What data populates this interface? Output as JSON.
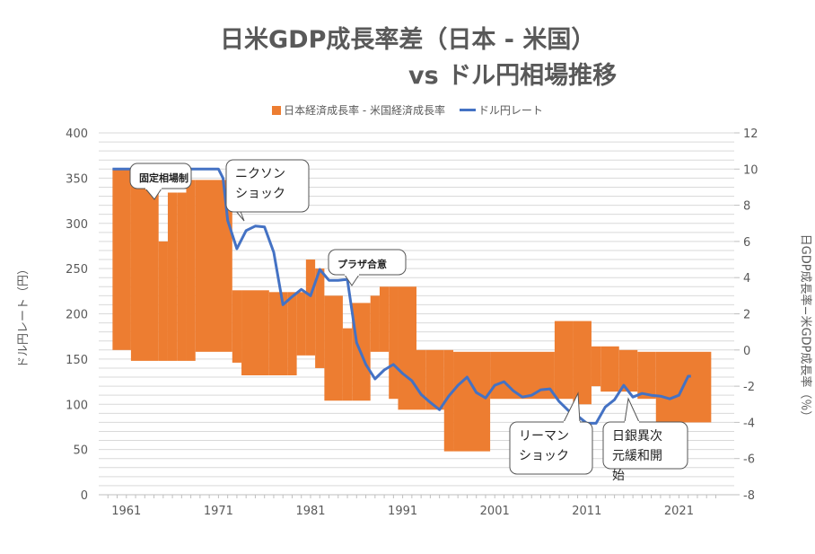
{
  "chart_data": {
    "type": "bar+line",
    "title_line1": "日米GDP成長率差（日本 - 米国）",
    "title_line2": "vs ドル円相場推移",
    "legend": {
      "bar": "日本経済成長率 - 米国経済成長率",
      "line": "ドル円レート"
    },
    "y_left": {
      "label": "ドル円レート（円）",
      "min": 0,
      "max": 400,
      "ticks": [
        0,
        50,
        100,
        150,
        200,
        250,
        300,
        350,
        400
      ]
    },
    "y_right": {
      "label": "日GDP成長率−米GDP成長率（％）",
      "min": -8,
      "max": 12,
      "ticks": [
        -8,
        -6,
        -4,
        -2,
        0,
        2,
        4,
        6,
        8,
        10,
        12
      ]
    },
    "x_ticks": [
      "1961",
      "1971",
      "1981",
      "1991",
      "2001",
      "2011",
      "2021"
    ],
    "x_range": [
      1958,
      2027
    ],
    "bar_series": {
      "name": "日本経済成長率 - 米国経済成長率",
      "color": "#ed7d31",
      "steps": [
        {
          "from": 1959.5,
          "to": 1964.5,
          "value": 10.0
        },
        {
          "from": 1964.5,
          "to": 1965.5,
          "value": 6.0
        },
        {
          "from": 1965.5,
          "to": 1967.5,
          "value": 8.7
        },
        {
          "from": 1967.5,
          "to": 1969.5,
          "value": 9.4
        },
        {
          "from": 1969.5,
          "to": 1972.5,
          "value": 9.4
        },
        {
          "from": 1972.5,
          "to": 1973.5,
          "value": 3.3
        },
        {
          "from": 1973.5,
          "to": 1976.5,
          "value": 3.3
        },
        {
          "from": 1976.5,
          "to": 1979.5,
          "value": 3.2
        },
        {
          "from": 1979.5,
          "to": 1980.5,
          "value": 3.2
        },
        {
          "from": 1980.5,
          "to": 1981.5,
          "value": 5.0
        },
        {
          "from": 1981.5,
          "to": 1982.5,
          "value": 4.5
        },
        {
          "from": 1982.5,
          "to": 1984.5,
          "value": 3.0
        },
        {
          "from": 1984.5,
          "to": 1985.5,
          "value": 1.2
        },
        {
          "from": 1985.5,
          "to": 1987.5,
          "value": 2.6
        },
        {
          "from": 1987.5,
          "to": 1988.5,
          "value": 3.0
        },
        {
          "from": 1988.5,
          "to": 1989.5,
          "value": 3.5
        },
        {
          "from": 1989.5,
          "to": 1992.5,
          "value": 3.5
        },
        {
          "from": 1992.5,
          "to": 1993.5,
          "value": 0.0
        },
        {
          "from": 1993.5,
          "to": 1996.5,
          "value": 0.0
        },
        {
          "from": 1996.5,
          "to": 2000.5,
          "value": -0.1
        },
        {
          "from": 2000.5,
          "to": 2007.5,
          "value": -0.1
        },
        {
          "from": 2007.5,
          "to": 2011.5,
          "value": 1.6
        },
        {
          "from": 2011.5,
          "to": 2014.5,
          "value": 0.2
        },
        {
          "from": 2014.5,
          "to": 2016.5,
          "value": 0.0
        },
        {
          "from": 2016.5,
          "to": 2024.5,
          "value": -0.1
        }
      ],
      "lows": [
        {
          "from": 1959.5,
          "to": 1961.5,
          "value": 0.0
        },
        {
          "from": 1961.5,
          "to": 1966.5,
          "value": -0.6
        },
        {
          "from": 1966.5,
          "to": 1968.5,
          "value": -0.6
        },
        {
          "from": 1968.5,
          "to": 1972.5,
          "value": -0.1
        },
        {
          "from": 1972.5,
          "to": 1973.5,
          "value": -0.7
        },
        {
          "from": 1973.5,
          "to": 1978.5,
          "value": -1.4
        },
        {
          "from": 1978.5,
          "to": 1979.5,
          "value": -1.4
        },
        {
          "from": 1979.5,
          "to": 1981.5,
          "value": -0.3
        },
        {
          "from": 1981.5,
          "to": 1982.5,
          "value": -1.0
        },
        {
          "from": 1982.5,
          "to": 1985.5,
          "value": -2.8
        },
        {
          "from": 1985.5,
          "to": 1987.5,
          "value": -2.8
        },
        {
          "from": 1987.5,
          "to": 1989.5,
          "value": -0.1
        },
        {
          "from": 1989.5,
          "to": 1990.5,
          "value": -2.7
        },
        {
          "from": 1990.5,
          "to": 1993.5,
          "value": -3.3
        },
        {
          "from": 1993.5,
          "to": 1995.5,
          "value": -3.3
        },
        {
          "from": 1995.5,
          "to": 2000.5,
          "value": -5.6
        },
        {
          "from": 2000.5,
          "to": 2009.5,
          "value": -2.7
        },
        {
          "from": 2009.5,
          "to": 2011.5,
          "value": -3.0
        },
        {
          "from": 2011.5,
          "to": 2012.5,
          "value": -2.0
        },
        {
          "from": 2012.5,
          "to": 2016.5,
          "value": -2.3
        },
        {
          "from": 2016.5,
          "to": 2018.5,
          "value": -2.7
        },
        {
          "from": 2018.5,
          "to": 2024.5,
          "value": -4.0
        }
      ]
    },
    "line_series": {
      "name": "ドル円レート",
      "color": "#4472c4",
      "x": [
        1959.5,
        1971,
        1971.5,
        1972,
        1973,
        1974,
        1975,
        1976,
        1977,
        1978,
        1979,
        1980,
        1981,
        1982,
        1983,
        1984,
        1985,
        1986,
        1987,
        1988,
        1989,
        1990,
        1991,
        1992,
        1993,
        1994,
        1995,
        1996,
        1997,
        1998,
        1999,
        2000,
        2001,
        2002,
        2003,
        2004,
        2005,
        2006,
        2007,
        2008,
        2009,
        2010,
        2011,
        2012,
        2013,
        2014,
        2015,
        2016,
        2017,
        2018,
        2019,
        2020,
        2021,
        2022,
        2022.3
      ],
      "y": [
        360,
        360,
        350,
        303,
        272,
        292,
        297,
        296,
        268,
        210,
        219,
        227,
        220,
        249,
        237,
        237,
        238,
        168,
        144,
        128,
        138,
        144,
        134,
        126,
        111,
        102,
        94,
        109,
        121,
        130,
        113,
        107,
        121,
        125,
        115,
        108,
        110,
        116,
        117,
        103,
        93,
        87,
        79,
        79,
        97,
        105,
        121,
        108,
        112,
        110,
        109,
        106,
        110,
        131,
        131
      ]
    },
    "annotations": [
      {
        "label": "固定相場制"
      },
      {
        "label_line1": "ニクソン",
        "label_line2": "ショック"
      },
      {
        "label": "プラザ合意"
      },
      {
        "label_line1": "リーマン",
        "label_line2": "ショック"
      },
      {
        "label_line1": "日銀異次",
        "label_line2": "元緩和開",
        "label_line3": "始"
      }
    ]
  }
}
